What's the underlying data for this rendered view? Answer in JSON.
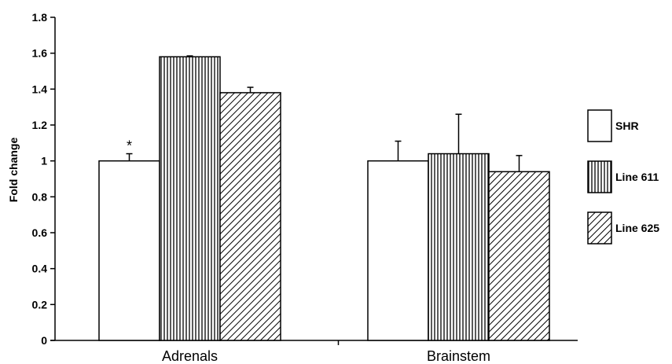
{
  "chart_data": {
    "type": "bar",
    "title": "",
    "xlabel": "",
    "ylabel": "Fold change",
    "ylim": [
      0,
      1.8
    ],
    "yticks": [
      "0",
      "0.2",
      "0.4",
      "0.6",
      "0.8",
      "1",
      "1.2",
      "1.4",
      "1.6",
      "1.8"
    ],
    "categories": [
      "Adrenals",
      "Brainstem"
    ],
    "series": [
      {
        "name": "SHR",
        "values": [
          1.0,
          1.0
        ],
        "errors": [
          0.04,
          0.11
        ],
        "pattern": "blank"
      },
      {
        "name": "Line 611",
        "values": [
          1.58,
          1.04
        ],
        "errors": [
          0.005,
          0.22
        ],
        "pattern": "vertical-lines"
      },
      {
        "name": "Line 625",
        "values": [
          1.38,
          0.94
        ],
        "errors": [
          0.03,
          0.09
        ],
        "pattern": "diagonal-lines"
      }
    ],
    "annotations": [
      {
        "text": "*",
        "category": "Adrenals",
        "series": "SHR"
      }
    ],
    "legend_position": "right",
    "grid": false
  }
}
